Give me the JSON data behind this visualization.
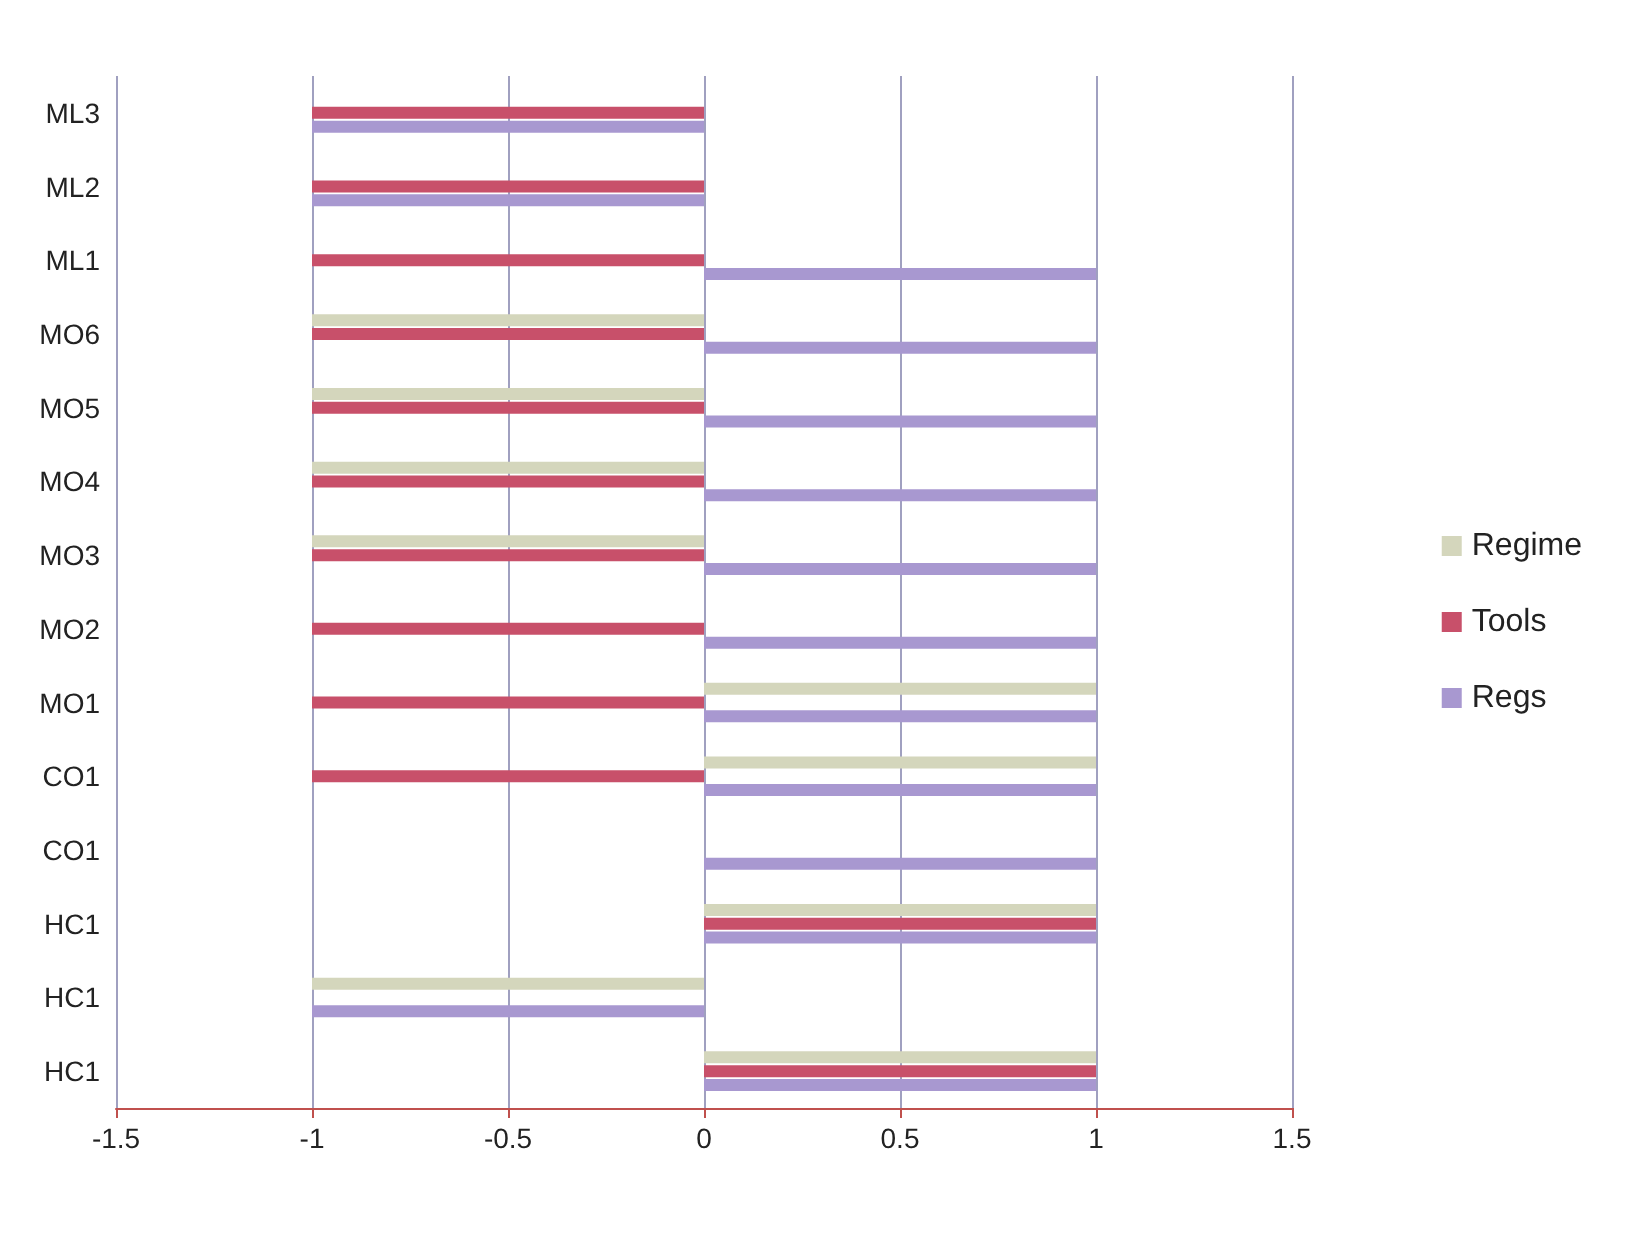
{
  "chart_data": {
    "type": "bar",
    "orientation": "horizontal",
    "categories": [
      "ML3",
      "ML2",
      "ML1",
      "MO6",
      "MO5",
      "MO4",
      "MO3",
      "MO2",
      "MO1",
      "CO1",
      "CO1",
      "HC1",
      "HC1",
      "HC1"
    ],
    "series": [
      {
        "name": "Regime",
        "color": "#d4d6bc",
        "values": [
          0,
          0,
          0,
          -1,
          -1,
          -1,
          -1,
          0,
          1,
          1,
          0,
          1,
          -1,
          1
        ]
      },
      {
        "name": "Tools",
        "color": "#c8506a",
        "values": [
          -1,
          -1,
          -1,
          -1,
          -1,
          -1,
          -1,
          -1,
          -1,
          -1,
          0,
          1,
          0,
          1
        ]
      },
      {
        "name": "Regs",
        "color": "#a898d0",
        "values": [
          -1,
          -1,
          1,
          1,
          1,
          1,
          1,
          1,
          1,
          1,
          1,
          1,
          -1,
          1
        ]
      }
    ],
    "xlim": [
      -1.5,
      1.5
    ],
    "xticks": [
      -1.5,
      -1,
      -0.5,
      0,
      0.5,
      1,
      1.5
    ],
    "grid": "x",
    "legend": "right"
  }
}
